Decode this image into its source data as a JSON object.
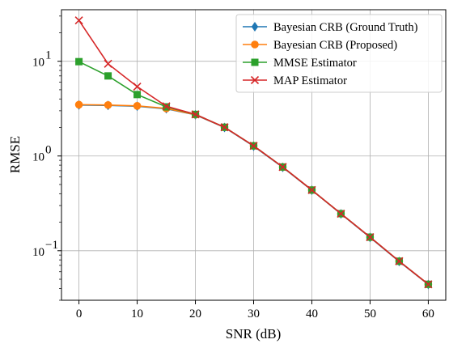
{
  "chart_data": {
    "type": "line",
    "xlabel": "SNR (dB)",
    "ylabel": "RMSE",
    "yscale": "log",
    "xlim": [
      -3,
      63
    ],
    "ylim": [
      0.03,
      35
    ],
    "grid": true,
    "legend_position": "top-right",
    "x_ticks": [
      0,
      10,
      20,
      30,
      40,
      50,
      60
    ],
    "y_ticks": [
      {
        "value": 0.1,
        "base": "10",
        "exp": "−1"
      },
      {
        "value": 1,
        "base": "10",
        "exp": "0"
      },
      {
        "value": 10,
        "base": "10",
        "exp": "1"
      }
    ],
    "x": [
      0,
      5,
      10,
      15,
      20,
      25,
      30,
      35,
      40,
      45,
      50,
      55,
      60
    ],
    "series": [
      {
        "name": "Bayesian CRB (Ground Truth)",
        "color": "#1f77b4",
        "marker": "diamond",
        "values": [
          3.45,
          3.42,
          3.35,
          3.15,
          2.72,
          2.0,
          1.27,
          0.76,
          0.435,
          0.245,
          0.138,
          0.077,
          0.044
        ]
      },
      {
        "name": "Bayesian CRB (Proposed)",
        "color": "#ff7f0e",
        "marker": "circle",
        "values": [
          3.48,
          3.45,
          3.38,
          3.18,
          2.73,
          2.01,
          1.28,
          0.765,
          0.437,
          0.246,
          0.139,
          0.0775,
          0.0442
        ]
      },
      {
        "name": "MMSE Estimator",
        "color": "#2ca02c",
        "marker": "square",
        "values": [
          9.9,
          7.0,
          4.45,
          3.3,
          2.75,
          2.01,
          1.28,
          0.765,
          0.437,
          0.246,
          0.139,
          0.0775,
          0.0442
        ]
      },
      {
        "name": "MAP Estimator",
        "color": "#d62728",
        "marker": "x",
        "values": [
          27.0,
          9.4,
          5.4,
          3.35,
          2.75,
          2.01,
          1.28,
          0.765,
          0.437,
          0.246,
          0.139,
          0.0775,
          0.0442
        ]
      }
    ]
  }
}
